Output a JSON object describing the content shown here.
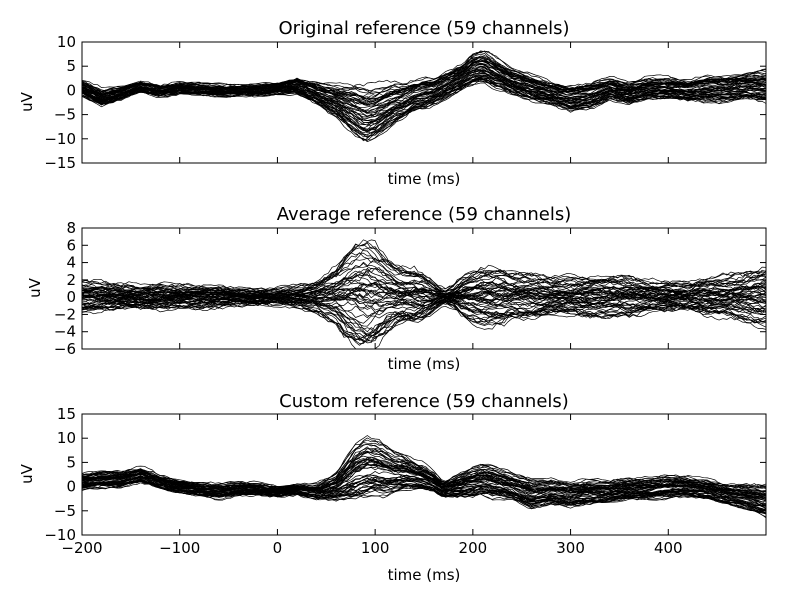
{
  "chart_data": [
    {
      "type": "line",
      "title": "Original reference (59 channels)",
      "xlabel": "time (ms)",
      "ylabel": "uV",
      "xlim": [
        -200,
        500
      ],
      "ylim": [
        -15,
        10
      ],
      "x_ticks_labeled": false,
      "y_ticks": [
        "10",
        "5",
        "0",
        "−5",
        "−10",
        "−15"
      ],
      "y_tick_values": [
        10,
        5,
        0,
        -5,
        -10,
        -15
      ],
      "n_channels": 59,
      "line_color": "#000000",
      "envelope": {
        "x": [
          -200,
          -180,
          -160,
          -140,
          -120,
          -100,
          -80,
          -60,
          -40,
          -20,
          0,
          20,
          40,
          60,
          70,
          80,
          90,
          100,
          110,
          120,
          130,
          140,
          150,
          160,
          170,
          180,
          190,
          200,
          210,
          220,
          230,
          240,
          260,
          280,
          300,
          320,
          340,
          360,
          380,
          400,
          420,
          440,
          460,
          480,
          500
        ],
        "mean": [
          0.5,
          -1.5,
          -0.5,
          0.8,
          0,
          0.5,
          0.3,
          0,
          0,
          0,
          0.5,
          1,
          -0.5,
          -2,
          -3,
          -4,
          -5,
          -4.5,
          -3.5,
          -2.5,
          -2,
          -1,
          -0.5,
          0,
          1,
          2,
          3,
          4.5,
          5,
          4,
          3,
          2,
          0.5,
          -0.5,
          -1.5,
          -1,
          0.5,
          -0.5,
          0.5,
          0.5,
          0,
          0.5,
          0.5,
          1,
          1
        ],
        "spread": [
          1.5,
          1.5,
          1.2,
          1,
          1,
          1,
          1,
          1,
          1,
          1,
          1,
          1.5,
          2,
          3,
          4,
          5,
          5.5,
          5,
          4.5,
          4,
          3.5,
          3,
          3,
          2.5,
          2.5,
          2.5,
          2.5,
          3,
          3,
          3,
          2.5,
          2.5,
          2.5,
          2,
          2.5,
          2.5,
          2,
          2,
          2,
          2,
          2,
          2.5,
          2.5,
          2.5,
          3
        ]
      }
    },
    {
      "type": "line",
      "title": "Average reference (59 channels)",
      "xlabel": "time (ms)",
      "ylabel": "uV",
      "xlim": [
        -200,
        500
      ],
      "ylim": [
        -6,
        8
      ],
      "x_ticks_labeled": false,
      "y_ticks": [
        "8",
        "6",
        "4",
        "2",
        "0",
        "−2",
        "−4",
        "−6"
      ],
      "y_tick_values": [
        8,
        6,
        4,
        2,
        0,
        -2,
        -4,
        -6
      ],
      "n_channels": 59,
      "line_color": "#000000",
      "envelope": {
        "x": [
          -200,
          -180,
          -160,
          -140,
          -120,
          -100,
          -80,
          -60,
          -40,
          -20,
          0,
          20,
          40,
          60,
          70,
          80,
          90,
          100,
          110,
          120,
          130,
          140,
          150,
          160,
          170,
          180,
          190,
          200,
          210,
          220,
          230,
          240,
          260,
          280,
          300,
          320,
          340,
          360,
          380,
          400,
          420,
          440,
          460,
          480,
          500
        ],
        "mean": [
          0,
          0,
          0,
          0,
          0,
          0,
          0,
          0,
          0,
          0,
          0,
          0,
          0,
          0,
          0,
          0,
          0,
          0,
          0,
          0,
          0,
          0,
          0,
          0,
          0,
          0,
          0,
          0,
          0,
          0,
          0,
          0,
          0,
          0,
          0,
          0,
          0,
          0,
          0,
          0,
          0,
          0,
          0,
          0,
          0
        ],
        "spread": [
          1.5,
          1.5,
          1.3,
          1.2,
          1.2,
          1,
          1,
          1,
          0.8,
          0.8,
          0.8,
          1,
          1.5,
          3,
          4.5,
          5.5,
          6,
          5.5,
          4.5,
          3.5,
          3,
          3,
          2.5,
          1.5,
          0.5,
          1,
          2,
          2.5,
          3,
          3,
          3,
          2.5,
          2.5,
          2,
          2,
          2,
          2,
          2,
          1.5,
          1.5,
          1.5,
          2,
          2,
          2.5,
          3
        ]
      }
    },
    {
      "type": "line",
      "title": "Custom reference (59 channels)",
      "xlabel": "time (ms)",
      "ylabel": "uV",
      "xlim": [
        -200,
        500
      ],
      "ylim": [
        -10,
        15
      ],
      "x_ticks": [
        "−200",
        "−100",
        "0",
        "100",
        "200",
        "300",
        "400"
      ],
      "x_tick_values": [
        -200,
        -100,
        0,
        100,
        200,
        300,
        400
      ],
      "y_ticks": [
        "15",
        "10",
        "5",
        "0",
        "−5",
        "−10"
      ],
      "y_tick_values": [
        15,
        10,
        5,
        0,
        -5,
        -10
      ],
      "n_channels": 59,
      "line_color": "#000000",
      "envelope": {
        "x": [
          -200,
          -180,
          -160,
          -140,
          -120,
          -100,
          -80,
          -60,
          -40,
          -20,
          0,
          20,
          40,
          60,
          70,
          80,
          90,
          100,
          110,
          120,
          130,
          140,
          150,
          160,
          170,
          180,
          190,
          200,
          210,
          220,
          230,
          240,
          260,
          280,
          300,
          320,
          340,
          360,
          380,
          400,
          420,
          440,
          460,
          480,
          500
        ],
        "mean": [
          1,
          1.5,
          1.5,
          2.5,
          1,
          0,
          -0.5,
          -1,
          -0.5,
          -0.5,
          -1,
          -0.5,
          -1,
          0,
          1.5,
          3,
          4,
          4,
          3.5,
          3,
          3,
          2.5,
          2,
          1,
          -0.5,
          0,
          0.5,
          1,
          1.5,
          1,
          0.5,
          0,
          -1.5,
          -1,
          -1.5,
          -1,
          -1,
          -0.5,
          -0.5,
          0,
          0,
          -0.5,
          -1.5,
          -2,
          -3
        ],
        "spread": [
          1.5,
          1.5,
          1.5,
          1.5,
          1.3,
          1.2,
          1.2,
          1.2,
          1.2,
          1.2,
          1,
          1,
          1.5,
          2.5,
          4,
          5.5,
          6,
          5.5,
          5,
          4,
          3.5,
          3,
          2.5,
          2,
          1.5,
          2,
          2.5,
          3,
          3,
          3,
          2.5,
          2.5,
          3,
          2.5,
          2.5,
          2.5,
          2,
          2,
          2,
          2,
          2,
          2,
          2,
          2.5,
          3
        ]
      }
    }
  ]
}
